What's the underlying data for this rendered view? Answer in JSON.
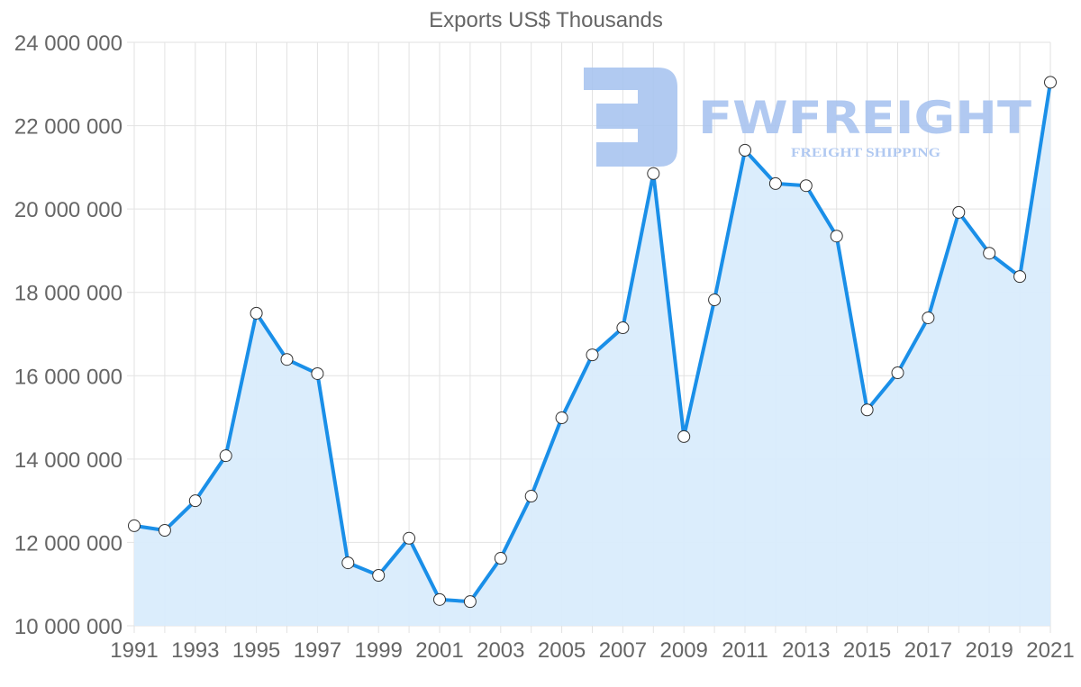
{
  "chart_data": {
    "type": "area",
    "title": "Exports US$ Thousands",
    "xlabel": "",
    "ylabel": "",
    "categories": [
      "1991",
      "1992",
      "1993",
      "1994",
      "1995",
      "1996",
      "1997",
      "1998",
      "1999",
      "2000",
      "2001",
      "2002",
      "2003",
      "2004",
      "2005",
      "2006",
      "2007",
      "2008",
      "2009",
      "2010",
      "2011",
      "2012",
      "2013",
      "2014",
      "2015",
      "2016",
      "2017",
      "2018",
      "2019",
      "2020",
      "2021"
    ],
    "series": [
      {
        "name": "Exports US$ Thousands",
        "values": [
          12400000,
          12290000,
          13000000,
          14080000,
          17500000,
          16390000,
          16050000,
          11510000,
          11210000,
          12100000,
          10630000,
          10580000,
          11620000,
          13110000,
          14990000,
          16500000,
          17150000,
          20850000,
          14540000,
          17820000,
          21410000,
          20610000,
          20560000,
          19350000,
          15180000,
          16070000,
          17390000,
          19920000,
          18940000,
          18380000,
          23040000
        ]
      }
    ],
    "ylim": [
      10000000,
      24000000
    ],
    "y_ticks": [
      "10 000 000",
      "12 000 000",
      "14 000 000",
      "16 000 000",
      "18 000 000",
      "20 000 000",
      "22 000 000",
      "24 000 000"
    ],
    "y_tick_values": [
      10000000,
      12000000,
      14000000,
      16000000,
      18000000,
      20000000,
      22000000,
      24000000
    ],
    "x_ticks": [
      "1991",
      "1993",
      "1995",
      "1997",
      "1999",
      "2001",
      "2003",
      "2005",
      "2007",
      "2009",
      "2011",
      "2013",
      "2015",
      "2017",
      "2019",
      "2021"
    ],
    "grid": true,
    "legend": "none",
    "colors": {
      "line": "#1a8fe8",
      "fill": "#d9ecfc",
      "point_fill": "#ffffff",
      "point_stroke": "#333333",
      "grid": "#e2e2e2",
      "text": "#666666"
    }
  },
  "watermark": {
    "brand": "FWFREIGHT",
    "tagline": "FREIGHT SHIPPING",
    "color": "#a9c4f0"
  }
}
